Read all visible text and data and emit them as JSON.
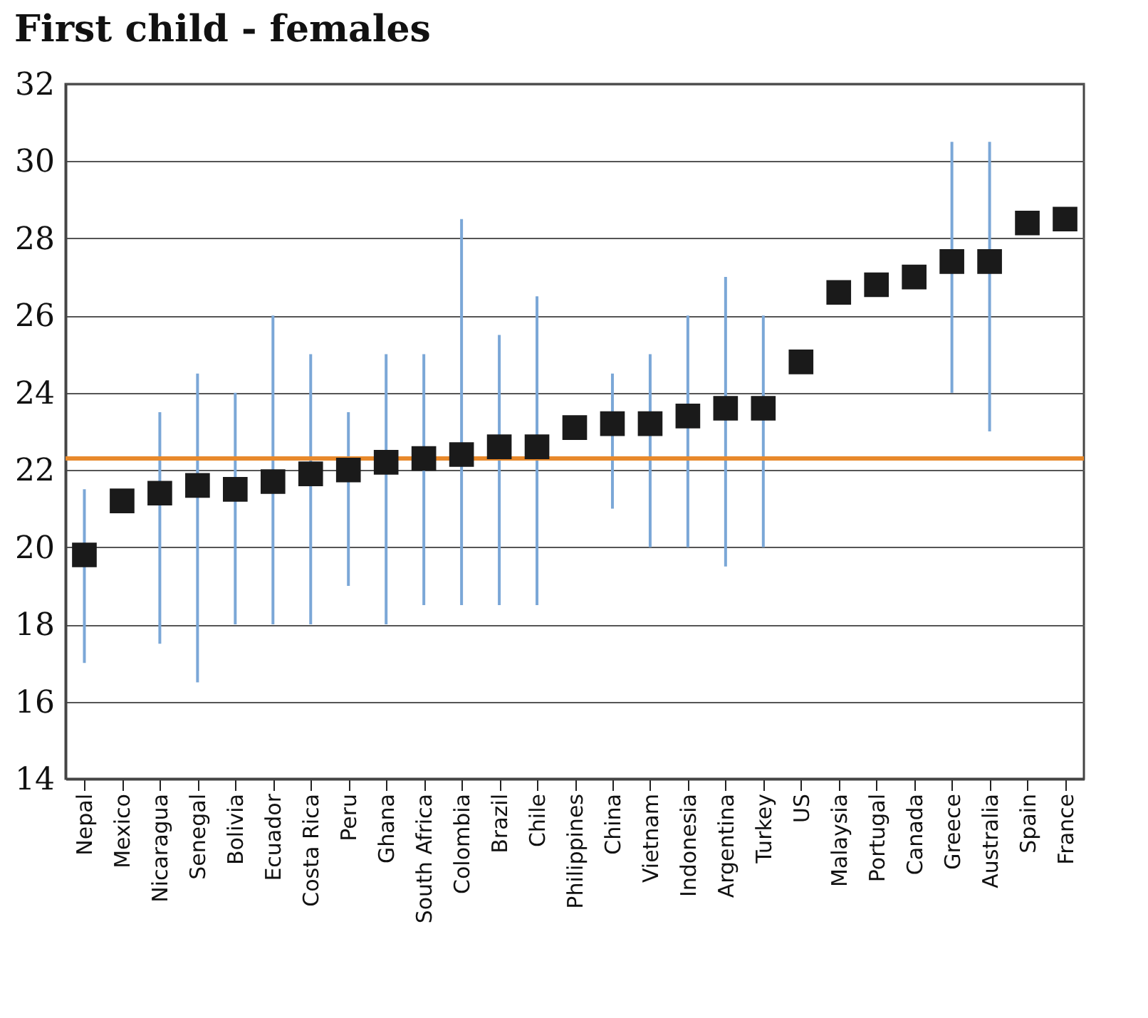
{
  "chart_data": {
    "type": "scatter",
    "title": "First child - females",
    "categories": [
      "Nepal",
      "Mexico",
      "Nicaragua",
      "Senegal",
      "Bolivia",
      "Ecuador",
      "Costa Rica",
      "Peru",
      "Ghana",
      "South Africa",
      "Colombia",
      "Brazil",
      "Chile",
      "Philippines",
      "China",
      "Vietnam",
      "Indonesia",
      "Argentina",
      "Turkey",
      "US",
      "Malaysia",
      "Portugal",
      "Canada",
      "Greece",
      "Australia",
      "Spain",
      "France"
    ],
    "series": [
      {
        "color": "#1a1a1a",
        "values": [
          19.8,
          21.2,
          21.4,
          21.6,
          21.5,
          21.7,
          21.9,
          22.0,
          22.2,
          22.3,
          22.4,
          22.6,
          22.6,
          23.1,
          23.2,
          23.2,
          23.4,
          23.6,
          23.6,
          24.8,
          26.6,
          26.8,
          27.0,
          27.4,
          27.4,
          28.4,
          28.5
        ],
        "errors": [
          [
            17,
            21.5
          ],
          null,
          [
            17.5,
            23.5
          ],
          [
            16.5,
            24.5
          ],
          [
            18,
            24
          ],
          [
            18,
            26
          ],
          [
            18,
            25
          ],
          [
            19,
            23.5
          ],
          [
            18,
            25
          ],
          [
            18.5,
            25
          ],
          [
            18.5,
            28.5
          ],
          [
            18.5,
            25.5
          ],
          [
            18.5,
            26.5
          ],
          null,
          [
            21,
            24.5
          ],
          [
            20,
            25
          ],
          [
            20,
            26
          ],
          [
            19.5,
            27
          ],
          [
            20,
            26
          ],
          null,
          null,
          null,
          null,
          [
            24,
            30.5
          ],
          [
            23,
            30.5
          ],
          null,
          null
        ]
      }
    ],
    "marker": "square",
    "ylim": [
      14,
      32
    ],
    "yticks": [
      14,
      16,
      18,
      20,
      22,
      24,
      26,
      28,
      30,
      32
    ],
    "grid": "y",
    "legend": false,
    "ref_lines": [
      {
        "axis": "y",
        "value": 22.3,
        "color": "#e8892b"
      }
    ]
  }
}
